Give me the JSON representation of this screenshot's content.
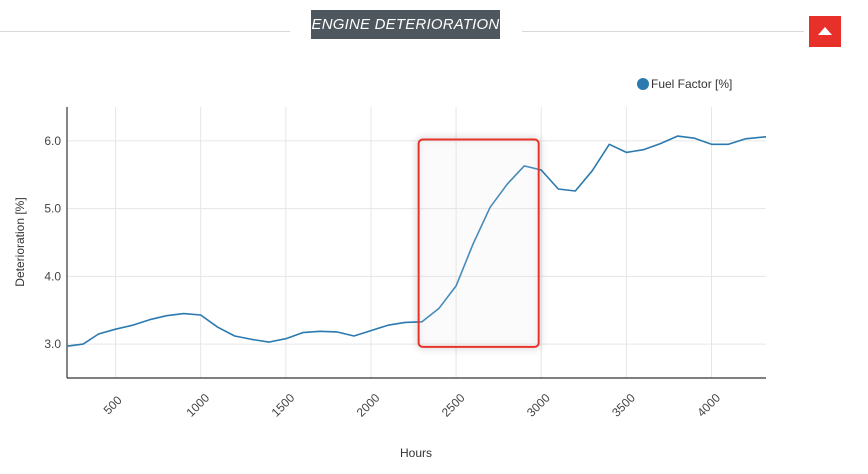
{
  "header": {
    "title": "ENGINE DETERIORATION"
  },
  "colors": {
    "series": "#2a7ab0",
    "highlight": "#e8302b",
    "header_bg": "#4e565e",
    "collapse_btn": "#e8302b"
  },
  "icons": {
    "collapse": "triangle-up-icon"
  },
  "chart_data": {
    "type": "line",
    "title": "",
    "xlabel": "Hours",
    "ylabel": "Deterioration [%]",
    "xlim": [
      215,
      4320
    ],
    "ylim": [
      2.5,
      6.5
    ],
    "grid": true,
    "legend_position": "top-right",
    "x_ticks": [
      500,
      1000,
      1500,
      2000,
      2500,
      3000,
      3500,
      4000
    ],
    "x_tick_labels": [
      "500",
      "1000",
      "1500",
      "2000",
      "2500",
      "3000",
      "3500",
      "4000"
    ],
    "y_ticks": [
      3.0,
      4.0,
      5.0,
      6.0
    ],
    "y_tick_labels": [
      "3.0",
      "4.0",
      "5.0",
      "6.0"
    ],
    "series": [
      {
        "name": "Fuel Factor [%]",
        "color": "#2a7ab0",
        "x": [
          215,
          310,
          400,
          500,
          600,
          700,
          800,
          900,
          1000,
          1100,
          1200,
          1300,
          1400,
          1500,
          1600,
          1700,
          1800,
          1900,
          2000,
          2100,
          2200,
          2300,
          2400,
          2500,
          2600,
          2700,
          2800,
          2900,
          3000,
          3100,
          3200,
          3300,
          3400,
          3500,
          3600,
          3700,
          3800,
          3900,
          4000,
          4100,
          4200,
          4320
        ],
        "values": [
          2.97,
          3.0,
          3.15,
          3.22,
          3.28,
          3.36,
          3.42,
          3.45,
          3.43,
          3.25,
          3.12,
          3.07,
          3.03,
          3.08,
          3.17,
          3.19,
          3.18,
          3.12,
          3.2,
          3.28,
          3.32,
          3.33,
          3.53,
          3.86,
          4.48,
          5.02,
          5.36,
          5.63,
          5.57,
          5.29,
          5.26,
          5.56,
          5.95,
          5.83,
          5.87,
          5.96,
          6.07,
          6.04,
          5.95,
          5.95,
          6.03,
          6.06
        ]
      }
    ],
    "annotations": [
      {
        "type": "highlight-box",
        "x_range": [
          2280,
          2985
        ],
        "y_range": [
          2.96,
          6.02
        ],
        "color": "#e8302b"
      }
    ]
  }
}
